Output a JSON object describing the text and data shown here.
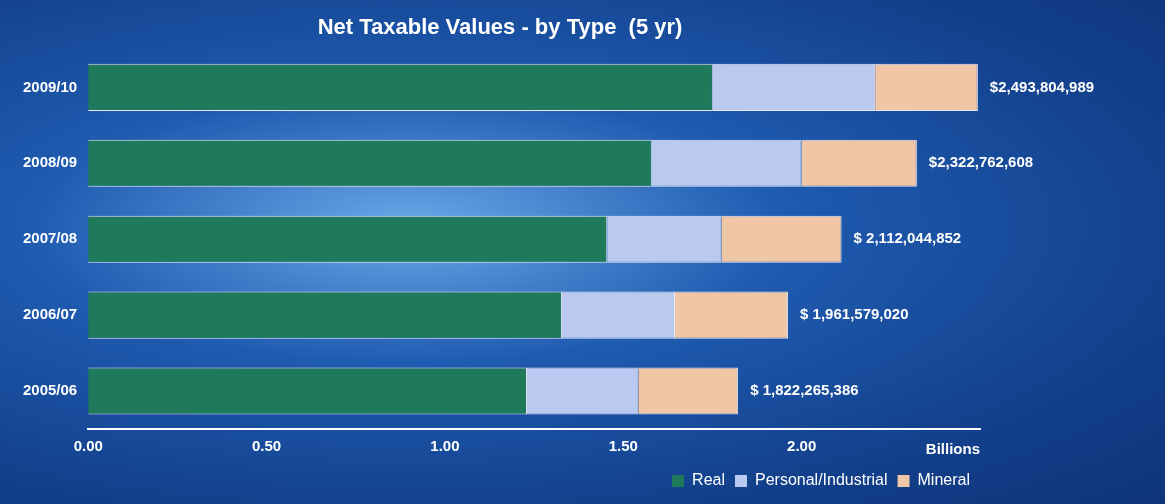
{
  "chart_data": {
    "type": "bar",
    "orientation": "horizontal",
    "stacked": true,
    "title": "Net Taxable Values - by Type  (5 yr)",
    "xlabel": "Billions",
    "categories": [
      "2009/10",
      "2008/09",
      "2007/08",
      "2006/07",
      "2005/06"
    ],
    "series": [
      {
        "name": "Real",
        "color": "#1f7a5c",
        "values": [
          1.751,
          1.58,
          1.455,
          1.328,
          1.23
        ]
      },
      {
        "name": "Personal/Industrial",
        "color": "#b9c9f0",
        "values": [
          0.455,
          0.42,
          0.32,
          0.317,
          0.312
        ]
      },
      {
        "name": "Mineral",
        "color": "#efc6a6",
        "values": [
          0.288,
          0.323,
          0.337,
          0.317,
          0.28
        ]
      }
    ],
    "annotations": [
      {
        "text": "$2,493,804,989",
        "x": 2.494,
        "y": "2009/10"
      },
      {
        "text": "$2,322,762,608",
        "x": 2.323,
        "y": "2008/09"
      },
      {
        "text": "$ 2,112,044,852",
        "x": 2.112,
        "y": "2007/08"
      },
      {
        "text": "$ 1,961,579,020",
        "x": 1.962,
        "y": "2006/07"
      },
      {
        "text": "$ 1,822,265,386",
        "x": 1.822,
        "y": "2005/06"
      }
    ],
    "xlim": [
      0,
      2.5
    ],
    "xticks": [
      {
        "value": 0,
        "label": "0.00"
      },
      {
        "value": 0.5,
        "label": "0.50"
      },
      {
        "value": 1,
        "label": "1.00"
      },
      {
        "value": 1.5,
        "label": "1.50"
      },
      {
        "value": 2,
        "label": "2.00"
      }
    ],
    "grid": false,
    "legend": "bottom right"
  }
}
